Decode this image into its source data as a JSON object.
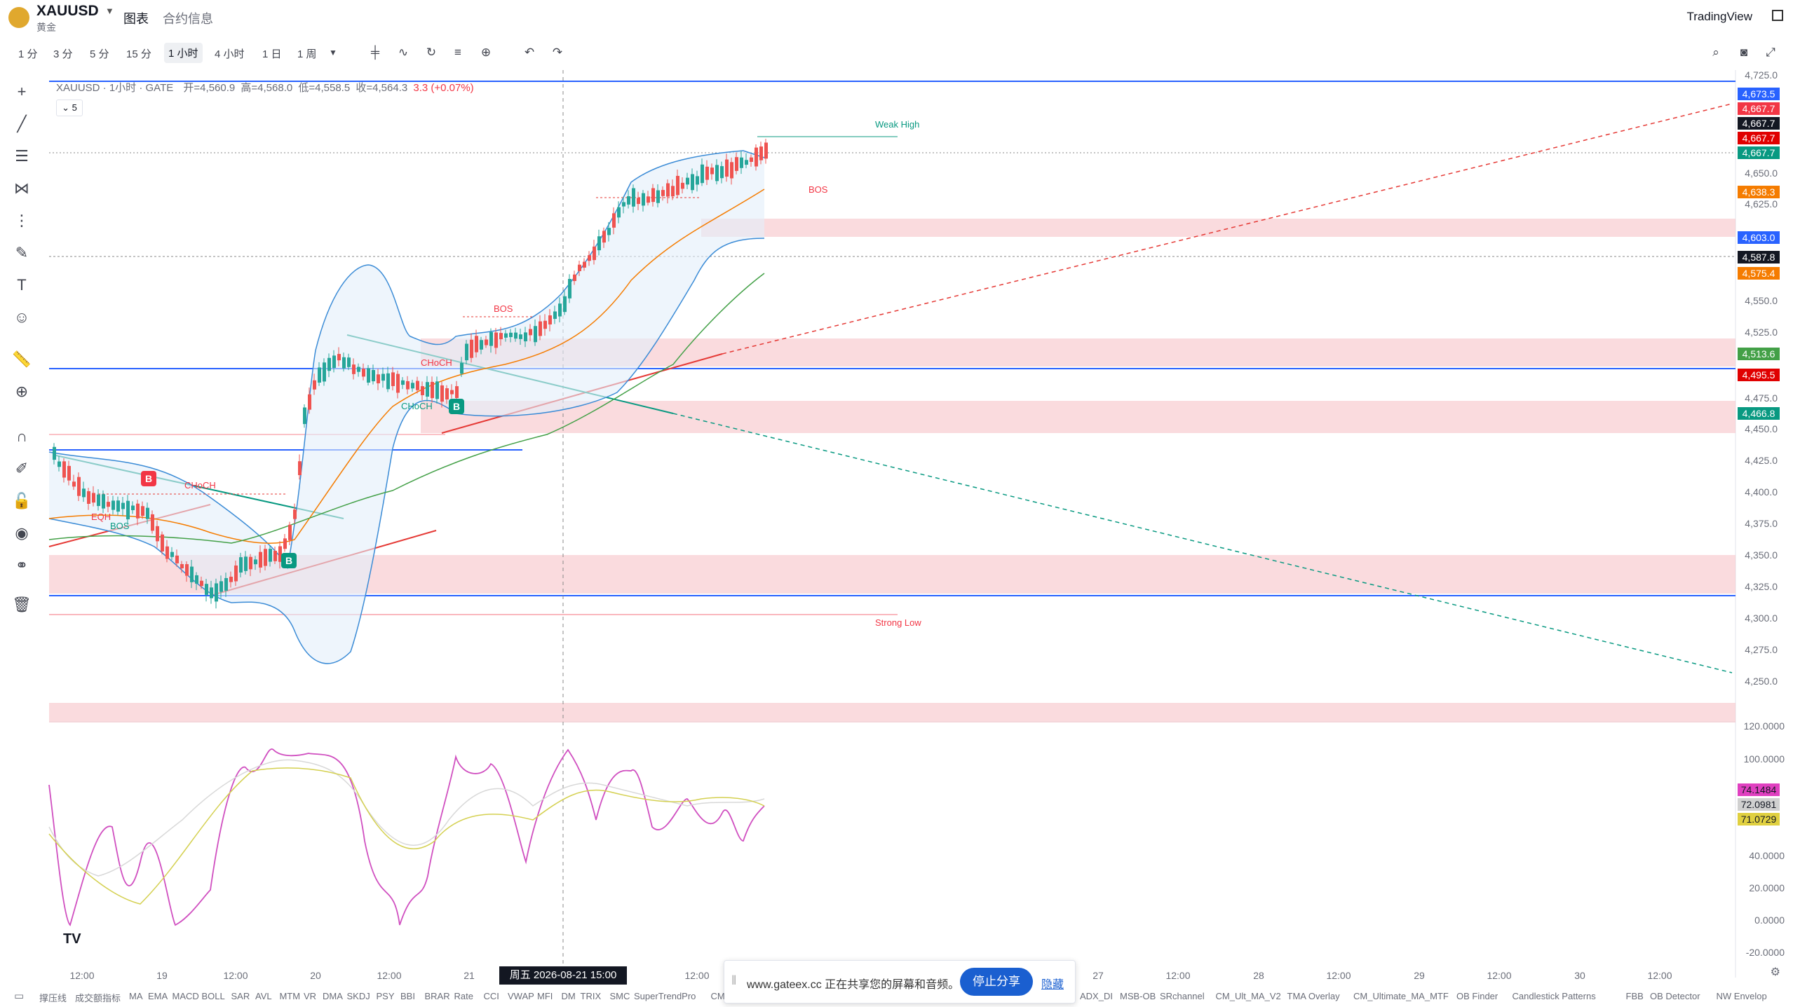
{
  "header": {
    "symbol": "XAUUSD",
    "symbol_sub": "黄金",
    "tabs": [
      "图表",
      "合约信息"
    ],
    "brand": "TradingView"
  },
  "toolbar": {
    "timeframes": [
      "1 分",
      "3 分",
      "5 分",
      "15 分",
      "1 小时",
      "4 小时",
      "1 日",
      "1 周"
    ],
    "active_timeframe": "1 小时"
  },
  "legend": {
    "title": "XAUUSD · 1小时 · GATE",
    "open": "开=4,560.9",
    "high": "高=4,568.0",
    "low": "低=4,558.5",
    "close": "收=4,564.3",
    "change": "3.3 (+0.07%)",
    "collapse_count": "5"
  },
  "annotations": {
    "weak_high": "Weak High",
    "strong_low": "Strong Low",
    "bos": "BOS",
    "choch": "CHoCH",
    "eqh": "EQH",
    "buy_marker": "B"
  },
  "price_axis": [
    "4,725.0",
    "4,650.0",
    "4,625.0",
    "4,550.0",
    "4,525.0",
    "4,475.0",
    "4,450.0",
    "4,425.0",
    "4,400.0",
    "4,375.0",
    "4,350.0",
    "4,325.0",
    "4,300.0",
    "4,275.0",
    "4,250.0"
  ],
  "price_labels": [
    {
      "text": "4,673.5",
      "color": "#2962ff"
    },
    {
      "text": "4,667.7",
      "color": "#f23645"
    },
    {
      "text": "4,667.7",
      "color": "#131722"
    },
    {
      "text": "4,667.7",
      "color": "#e00000"
    },
    {
      "text": "4,667.7",
      "color": "#089981"
    },
    {
      "text": "4,638.3",
      "color": "#f57c00"
    },
    {
      "text": "4,603.0",
      "color": "#2962ff"
    },
    {
      "text": "4,587.8",
      "color": "#131722"
    },
    {
      "text": "4,575.4",
      "color": "#f57c00"
    },
    {
      "text": "4,513.6",
      "color": "#43a047"
    },
    {
      "text": "4,495.5",
      "color": "#e00000"
    },
    {
      "text": "4,466.8",
      "color": "#089981"
    }
  ],
  "osc_axis": [
    "120.0000",
    "100.0000",
    "40.0000",
    "20.0000",
    "0.0000",
    "-20.0000"
  ],
  "osc_labels": [
    {
      "text": "74.1484",
      "color": "#e040c0"
    },
    {
      "text": "72.0981",
      "color": "#d0d0d0"
    },
    {
      "text": "71.0729",
      "color": "#e0d040"
    }
  ],
  "time_axis": [
    "12:00",
    "19",
    "12:00",
    "20",
    "12:00",
    "21",
    "12:00",
    "27",
    "12:00",
    "28",
    "12:00",
    "29",
    "12:00",
    "30",
    "12:00"
  ],
  "crosshair_date": "周五 2026-08-21   15:00",
  "share": {
    "text": "www.gateex.cc 正在共享您的屏幕和音频。",
    "stop": "停止分享",
    "hide": "隐藏"
  },
  "indicators": [
    "撑压线",
    "成交额指标",
    "MA",
    "EMA",
    "MACD",
    "BOLL",
    "SAR",
    "AVL",
    "MTM",
    "VR",
    "DMA",
    "SKDJ",
    "PSY",
    "BBI",
    "BRAR",
    "Rate",
    "CCI",
    "VWAP",
    "MFI",
    "DM",
    "TRIX",
    "SMC",
    "SuperTrendPro",
    "CM",
    "ADX_DI",
    "MSB-OB",
    "SRchannel",
    "CM_Ult_MA_V2",
    "TMA Overlay",
    "CM_Ultimate_MA_MTF",
    "OB Finder",
    "Candlestick Patterns",
    "FBB",
    "OB Detector",
    "NW Envelop"
  ]
}
